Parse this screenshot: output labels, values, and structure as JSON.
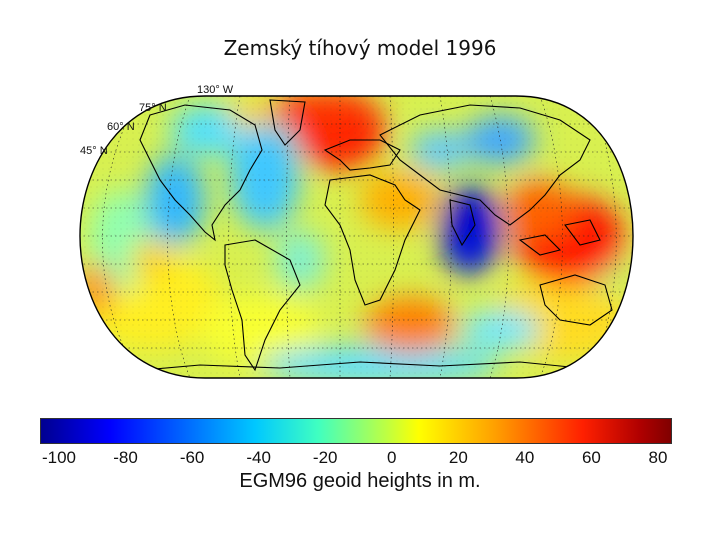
{
  "title": "Zemský tíhový model 1996",
  "map": {
    "projection_labels": [
      "130° W",
      "75° N",
      "60° N",
      "45° N"
    ],
    "high_color": "#e00000",
    "low_color": "#0000d0",
    "mid_color": "#ffff00"
  },
  "colorbar": {
    "ticks": [
      "-100",
      "-80",
      "-60",
      "-40",
      "-20",
      "0",
      "20",
      "40",
      "60",
      "80"
    ],
    "range": [
      -100,
      80
    ],
    "label": "EGM96 geoid heights in m."
  }
}
